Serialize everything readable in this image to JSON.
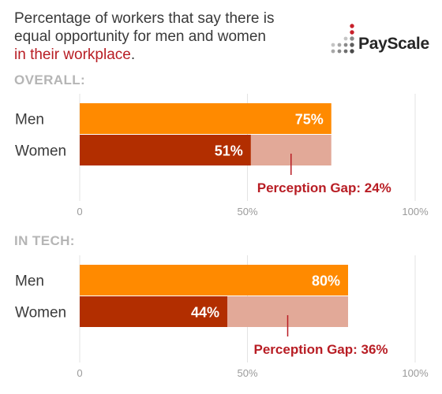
{
  "title": {
    "line1": "Percentage of workers that say there is",
    "line2": "equal opportunity for men and women",
    "highlight": "in their workplace",
    "end": "."
  },
  "logo": {
    "text": "PayScale"
  },
  "colors": {
    "men": "#ff8a00",
    "women": "#b22e00",
    "gap": "#e2a998",
    "accent": "#b81d24",
    "grid": "#e3e3e3",
    "axis_text": "#9a9a9a",
    "label_text": "#3a3a3a",
    "section_label": "#b5b5b5"
  },
  "chart_data": [
    {
      "type": "bar",
      "title": "OVERALL:",
      "categories": [
        "Men",
        "Women"
      ],
      "series": [
        {
          "values": [
            75,
            51
          ]
        }
      ],
      "value_labels": [
        "75%",
        "51%"
      ],
      "gap_label": "Perception Gap: 24%",
      "xlim": [
        0,
        100
      ],
      "x_ticks": [
        0,
        50,
        100
      ],
      "x_tick_labels": [
        "0",
        "50%",
        "100%"
      ],
      "grid": true,
      "orientation": "horizontal"
    },
    {
      "type": "bar",
      "title": "IN TECH:",
      "categories": [
        "Men",
        "Women"
      ],
      "series": [
        {
          "values": [
            80,
            44
          ]
        }
      ],
      "value_labels": [
        "80%",
        "44%"
      ],
      "gap_label": "Perception Gap: 36%",
      "xlim": [
        0,
        100
      ],
      "x_ticks": [
        0,
        50,
        100
      ],
      "x_tick_labels": [
        "0",
        "50%",
        "100%"
      ],
      "grid": true,
      "orientation": "horizontal"
    }
  ]
}
